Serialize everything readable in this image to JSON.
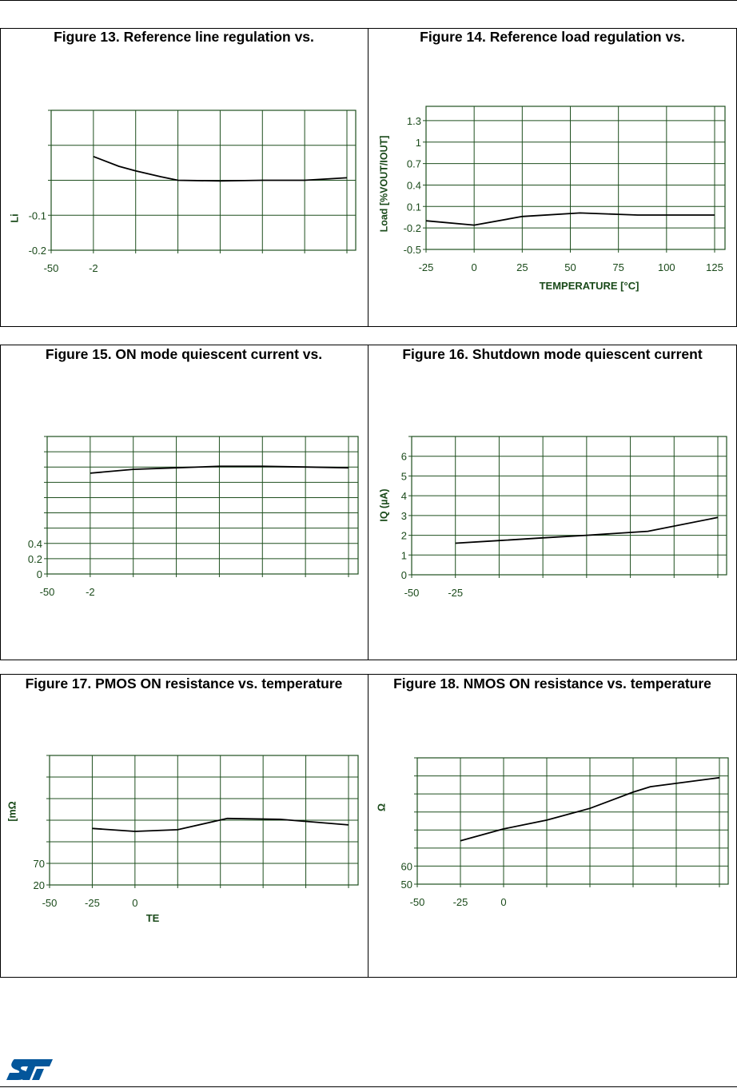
{
  "chart_data": [
    {
      "id": "fig13",
      "type": "line",
      "title": "Figure 13. Reference line regulation vs.",
      "xlabel": "",
      "ylabel": "Li",
      "xlim": [
        -50,
        125
      ],
      "ylim": [
        -0.2,
        0.2
      ],
      "x_grid": [
        -50,
        -25,
        0,
        25,
        50,
        75,
        100,
        125
      ],
      "y_grid": [
        -0.2,
        -0.1,
        0,
        0.1,
        0.2
      ],
      "x_tick_labels": [
        {
          "v": -50,
          "t": "-50"
        },
        {
          "v": -25,
          "t": "-2"
        }
      ],
      "y_tick_labels": [
        {
          "v": -0.1,
          "t": "-0.1"
        },
        {
          "v": -0.2,
          "t": "-0.2"
        }
      ],
      "series": [
        {
          "name": "line regulation",
          "x": [
            -25,
            -10,
            0,
            15,
            25,
            50,
            75,
            100,
            125
          ],
          "y": [
            0.068,
            0.04,
            0.027,
            0.01,
            0.0,
            -0.002,
            0.0,
            0.0,
            0.007
          ]
        }
      ]
    },
    {
      "id": "fig14",
      "type": "line",
      "title": "Figure 14. Reference load regulation vs.",
      "xlabel": "TEMPERATURE [°C]",
      "ylabel": "Load [%VOUT/IOUT]",
      "xlim": [
        -25,
        131
      ],
      "ylim": [
        -0.5,
        1.5
      ],
      "x_grid": [
        -25,
        0,
        25,
        50,
        75,
        100,
        125
      ],
      "y_grid": [
        -0.5,
        -0.2,
        0.1,
        0.4,
        0.7,
        1,
        1.3
      ],
      "x_tick_labels": [
        {
          "v": -25,
          "t": "-25"
        },
        {
          "v": 0,
          "t": "0"
        },
        {
          "v": 25,
          "t": "25"
        },
        {
          "v": 50,
          "t": "50"
        },
        {
          "v": 75,
          "t": "75"
        },
        {
          "v": 100,
          "t": "100"
        },
        {
          "v": 125,
          "t": "125"
        }
      ],
      "y_tick_labels": [
        {
          "v": 1.3,
          "t": "1.3"
        },
        {
          "v": 1,
          "t": "1"
        },
        {
          "v": 0.7,
          "t": "0.7"
        },
        {
          "v": 0.4,
          "t": "0.4"
        },
        {
          "v": 0.1,
          "t": "0.1"
        },
        {
          "v": -0.2,
          "t": "-0.2"
        },
        {
          "v": -0.5,
          "t": "-0.5"
        }
      ],
      "series": [
        {
          "name": "load regulation",
          "x": [
            -25,
            0,
            25,
            55,
            75,
            85,
            125
          ],
          "y": [
            -0.1,
            -0.16,
            -0.04,
            0.01,
            -0.01,
            -0.02,
            -0.02
          ]
        }
      ]
    },
    {
      "id": "fig15",
      "type": "line",
      "title": "Figure 15. ON mode quiescent current vs.",
      "xlabel": "",
      "ylabel": "",
      "xlim": [
        -50,
        131
      ],
      "ylim": [
        0,
        1.8
      ],
      "x_grid": [
        -50,
        -25,
        0,
        25,
        50,
        75,
        100,
        125
      ],
      "y_grid": [
        0,
        0.2,
        0.4,
        0.6,
        0.8,
        1.0,
        1.2,
        1.4,
        1.6,
        1.8
      ],
      "x_tick_labels": [
        {
          "v": -50,
          "t": "-50"
        },
        {
          "v": -25,
          "t": "-2"
        }
      ],
      "y_tick_labels": [
        {
          "v": 0.4,
          "t": "0.4"
        },
        {
          "v": 0.2,
          "t": "0.2"
        },
        {
          "v": 0,
          "t": "0"
        }
      ],
      "series": [
        {
          "name": "ON quiescent current",
          "x": [
            -25,
            0,
            25,
            50,
            75,
            100,
            125
          ],
          "y": [
            1.32,
            1.37,
            1.39,
            1.41,
            1.41,
            1.4,
            1.39
          ]
        }
      ]
    },
    {
      "id": "fig16",
      "type": "line",
      "title": "Figure 16. Shutdown mode quiescent current",
      "xlabel": "",
      "ylabel": "IQ (µA)",
      "xlim": [
        -50,
        130
      ],
      "ylim": [
        0,
        7
      ],
      "x_grid": [
        -50,
        -25,
        0,
        25,
        50,
        75,
        100,
        125
      ],
      "y_grid": [
        0,
        1,
        2,
        3,
        4,
        5,
        6,
        7
      ],
      "x_tick_labels": [
        {
          "v": -50,
          "t": "-50"
        },
        {
          "v": -25,
          "t": "-25"
        }
      ],
      "y_tick_labels": [
        {
          "v": 6,
          "t": "6"
        },
        {
          "v": 5,
          "t": "5"
        },
        {
          "v": 4,
          "t": "4"
        },
        {
          "v": 3,
          "t": "3"
        },
        {
          "v": 2,
          "t": "2"
        },
        {
          "v": 1,
          "t": "1"
        },
        {
          "v": 0,
          "t": "0"
        }
      ],
      "series": [
        {
          "name": "shutdown quiescent current",
          "x": [
            -25,
            0,
            25,
            50,
            85,
            125
          ],
          "y": [
            1.6,
            1.73,
            1.87,
            2.0,
            2.2,
            2.9
          ]
        }
      ]
    },
    {
      "id": "fig17",
      "type": "line",
      "title": "Figure 17. PMOS ON resistance vs. temperature",
      "xlabel": "TE",
      "ylabel": "[mΩ",
      "xlim": [
        -50,
        130
      ],
      "ylim": [
        20,
        320
      ],
      "x_grid": [
        -50,
        -25,
        0,
        25,
        50,
        75,
        100,
        125
      ],
      "y_grid": [
        20,
        70,
        120,
        170,
        220,
        270,
        320
      ],
      "x_tick_labels": [
        {
          "v": -50,
          "t": "-50"
        },
        {
          "v": -25,
          "t": "-25"
        },
        {
          "v": 0,
          "t": "0"
        }
      ],
      "y_tick_labels": [
        {
          "v": 70,
          "t": "70"
        },
        {
          "v": 20,
          "t": "20"
        }
      ],
      "series": [
        {
          "name": "PMOS RDS(on)",
          "x": [
            -25,
            0,
            25,
            54,
            85,
            125
          ],
          "y": [
            151,
            144,
            148,
            174,
            172,
            159
          ]
        }
      ]
    },
    {
      "id": "fig18",
      "type": "line",
      "title": "Figure 18. NMOS ON resistance vs. temperature",
      "xlabel": "",
      "ylabel": "Ω",
      "xlim": [
        -50,
        130
      ],
      "ylim": [
        50,
        120
      ],
      "x_grid": [
        -50,
        -25,
        0,
        25,
        50,
        75,
        100,
        125
      ],
      "y_grid": [
        50,
        60,
        70,
        80,
        90,
        100,
        110,
        120
      ],
      "x_tick_labels": [
        {
          "v": -50,
          "t": "-50"
        },
        {
          "v": -25,
          "t": "-25"
        },
        {
          "v": 0,
          "t": "0"
        }
      ],
      "y_tick_labels": [
        {
          "v": 60,
          "t": "60"
        },
        {
          "v": 50,
          "t": "50"
        }
      ],
      "series": [
        {
          "name": "NMOS RDS(on)",
          "x": [
            -25,
            0,
            25,
            50,
            75,
            85,
            125
          ],
          "y": [
            74,
            80.6,
            85.5,
            92,
            101,
            104,
            109
          ]
        }
      ]
    }
  ],
  "colors": {
    "grid": "#1f4f1f",
    "text": "#1a4a1a",
    "line": "#000000",
    "logo": "#03569b"
  },
  "footer": {
    "logo_text": "ST"
  }
}
